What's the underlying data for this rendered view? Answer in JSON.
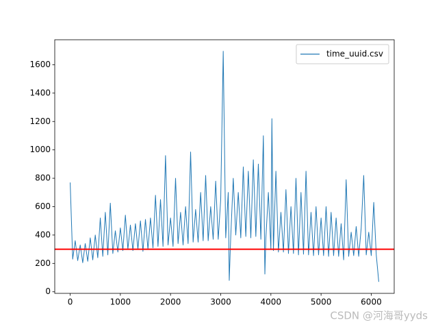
{
  "chart_data": {
    "type": "line",
    "x": [
      0,
      50,
      100,
      150,
      200,
      250,
      300,
      350,
      400,
      450,
      500,
      550,
      600,
      650,
      700,
      750,
      800,
      850,
      900,
      950,
      1000,
      1050,
      1100,
      1150,
      1200,
      1250,
      1300,
      1350,
      1400,
      1450,
      1500,
      1550,
      1600,
      1650,
      1700,
      1750,
      1800,
      1850,
      1900,
      1950,
      2000,
      2050,
      2100,
      2150,
      2200,
      2250,
      2300,
      2350,
      2400,
      2450,
      2500,
      2550,
      2600,
      2650,
      2700,
      2750,
      2800,
      2850,
      2900,
      2950,
      3000,
      3050,
      3100,
      3150,
      3170,
      3200,
      3250,
      3300,
      3350,
      3400,
      3450,
      3500,
      3550,
      3600,
      3650,
      3700,
      3750,
      3800,
      3850,
      3880,
      3900,
      3950,
      4000,
      4020,
      4050,
      4100,
      4150,
      4200,
      4250,
      4300,
      4350,
      4400,
      4450,
      4500,
      4550,
      4600,
      4650,
      4700,
      4750,
      4800,
      4850,
      4900,
      4950,
      5000,
      5050,
      5100,
      5150,
      5200,
      5250,
      5300,
      5350,
      5400,
      5450,
      5500,
      5550,
      5600,
      5650,
      5700,
      5750,
      5800,
      5850,
      5900,
      5950,
      6000,
      6050,
      6100,
      6150
    ],
    "series": [
      {
        "name": "time_uuid.csv",
        "color": "#1f77b4",
        "values": [
          770,
          230,
          360,
          220,
          330,
          205,
          340,
          215,
          380,
          225,
          400,
          240,
          520,
          250,
          560,
          260,
          625,
          270,
          430,
          280,
          450,
          290,
          540,
          300,
          470,
          290,
          480,
          300,
          500,
          285,
          510,
          300,
          520,
          310,
          680,
          320,
          650,
          320,
          960,
          330,
          520,
          320,
          800,
          340,
          560,
          330,
          600,
          340,
          985,
          350,
          580,
          350,
          700,
          360,
          820,
          360,
          600,
          370,
          780,
          370,
          650,
          1695,
          380,
          700,
          80,
          390,
          800,
          400,
          700,
          380,
          880,
          390,
          850,
          380,
          930,
          390,
          900,
          370,
          1100,
          125,
          380,
          700,
          300,
          1220,
          290,
          850,
          280,
          560,
          280,
          720,
          270,
          600,
          270,
          800,
          260,
          700,
          265,
          850,
          260,
          560,
          255,
          600,
          260,
          520,
          255,
          600,
          250,
          560,
          255,
          520,
          250,
          480,
          225,
          790,
          250,
          420,
          255,
          460,
          250,
          450,
          820,
          260,
          420,
          255,
          630,
          260,
          70
        ]
      }
    ],
    "hline": {
      "value": 300,
      "color": "#ff0000"
    },
    "xlim": [
      -307.5,
      6457.5
    ],
    "ylim": [
      -11,
      1776
    ],
    "xticks": [
      0,
      1000,
      2000,
      3000,
      4000,
      5000,
      6000
    ],
    "yticks": [
      0,
      200,
      400,
      600,
      800,
      1000,
      1200,
      1400,
      1600
    ],
    "grid": false,
    "legend": "upper right",
    "watermark": "CSDN @河海哥yyds"
  }
}
